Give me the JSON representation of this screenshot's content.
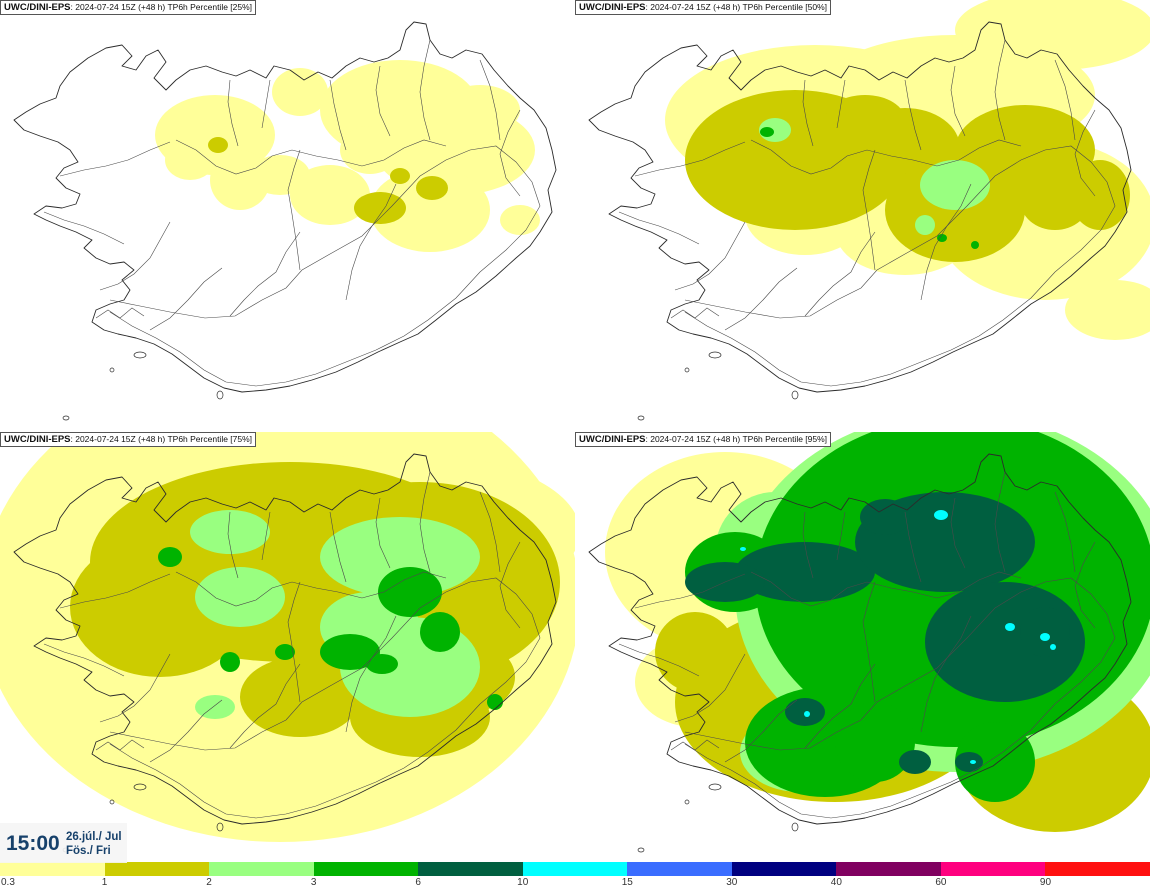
{
  "panels": [
    {
      "source": "UWC/DINI-EPS",
      "run": ": 2024-07-24 15Z (+48 h)",
      "field": " TP6h Percentile [25%]",
      "percentile": 25
    },
    {
      "source": "UWC/DINI-EPS",
      "run": ": 2024-07-24 15Z (+48 h)",
      "field": " TP6h Percentile [50%]",
      "percentile": 50
    },
    {
      "source": "UWC/DINI-EPS",
      "run": ": 2024-07-24 15Z (+48 h)",
      "field": " TP6h Percentile [75%]",
      "percentile": 75
    },
    {
      "source": "UWC/DINI-EPS",
      "run": ": 2024-07-24 15Z (+48 h)",
      "field": " TP6h Percentile [95%]",
      "percentile": 95
    }
  ],
  "valid_time": {
    "time": "15:00",
    "date_line1": "26.júl./ Jul",
    "date_line2": "Fös./ Fri"
  },
  "legend": {
    "labels": [
      "0.3",
      "1",
      "2",
      "3",
      "6",
      "10",
      "15",
      "30",
      "40",
      "60",
      "90"
    ],
    "colors": [
      "#ffff99",
      "#cccc00",
      "#99ff80",
      "#00b300",
      "#005f40",
      "#00ffff",
      "#3a6dff",
      "#000080",
      "#800060",
      "#ff007f",
      "#ff1010"
    ]
  }
}
